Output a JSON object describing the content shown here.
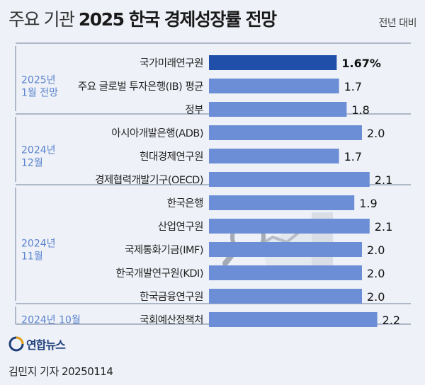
{
  "header": {
    "title_light": "주요 기관",
    "title_bold": "2025 한국 경제성장률 전망",
    "unit": "전년 대비"
  },
  "colors": {
    "bar": "#6b8ed6",
    "bar_highlight": "#1f4fa8",
    "group_label": "#5a83cf",
    "separator": "#6f7f9a"
  },
  "chart_data": {
    "type": "bar",
    "orientation": "horizontal",
    "title": "2025 한국 경제성장률 전망",
    "unit": "전년 대비",
    "categories": [
      "국가미래연구원",
      "주요 글로벌 투자은행(IB) 평균",
      "정부",
      "아시아개발은행(ADB)",
      "현대경제연구원",
      "경제협력개발기구(OECD)",
      "한국은행",
      "산업연구원",
      "국제통화기금(IMF)",
      "한국개발연구원(KDI)",
      "한국금융연구원",
      "국회예산정책처"
    ],
    "values": [
      1.67,
      1.7,
      1.8,
      2.0,
      1.7,
      2.1,
      1.9,
      2.1,
      2.0,
      2.0,
      2.0,
      2.2
    ],
    "value_labels": [
      "1.67%",
      "1.7",
      "1.8",
      "2.0",
      "1.7",
      "2.1",
      "1.9",
      "2.1",
      "2.0",
      "2.0",
      "2.0",
      "2.2"
    ],
    "highlight_index": 0,
    "groups": [
      {
        "label": [
          "2025년",
          "1월 전망"
        ],
        "start": 0,
        "end": 2
      },
      {
        "label": [
          "2024년",
          "12월"
        ],
        "start": 3,
        "end": 5
      },
      {
        "label": [
          "2024년",
          "11월"
        ],
        "start": 6,
        "end": 10
      },
      {
        "label": [
          "2024년 10월"
        ],
        "start": 11,
        "end": 11
      }
    ]
  },
  "footer": {
    "brand": "연합뉴스",
    "credit": "김민지 기자  20250114"
  }
}
